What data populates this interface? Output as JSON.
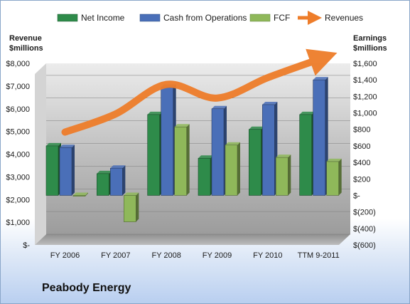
{
  "company_name": "Peabody Energy",
  "chart_data": {
    "type": "bar",
    "categories": [
      "FY 2006",
      "FY 2007",
      "FY 2008",
      "FY 2009",
      "FY 2010",
      "TTM 9-2011"
    ],
    "series": [
      {
        "name": "Net Income",
        "axis": "right",
        "kind": "bar",
        "color": "#2e8b4a",
        "values": [
          600,
          264,
          980,
          450,
          800,
          980
        ]
      },
      {
        "name": "Cash from Operations",
        "axis": "right",
        "kind": "bar",
        "color": "#4a6fb8",
        "values": [
          580,
          330,
          1310,
          1050,
          1100,
          1400
        ]
      },
      {
        "name": "FCF",
        "axis": "right",
        "kind": "bar",
        "color": "#8fb85a",
        "values": [
          -10,
          -320,
          830,
          610,
          460,
          410
        ]
      },
      {
        "name": "Revenues",
        "axis": "left",
        "kind": "line",
        "color": "#ee7d2a",
        "values": [
          4500,
          5300,
          6600,
          6000,
          6900,
          7700
        ]
      }
    ],
    "left_axis": {
      "title_line1": "Revenue",
      "title_line2": "$millions",
      "ylim": [
        0,
        8000
      ],
      "ticks": [
        "$8,000",
        "$7,000",
        "$6,000",
        "$5,000",
        "$4,000",
        "$3,000",
        "$2,000",
        "$1,000",
        "$-"
      ],
      "tick_values": [
        8000,
        7000,
        6000,
        5000,
        4000,
        3000,
        2000,
        1000,
        0
      ]
    },
    "right_axis": {
      "title_line1": "Earnings",
      "title_line2": "$millions",
      "ylim": [
        -600,
        1600
      ],
      "ticks": [
        "$1,600",
        "$1,400",
        "$1,200",
        "$1,000",
        "$800",
        "$600",
        "$400",
        "$200",
        "$-",
        "$(200)",
        "$(400)",
        "$(600)"
      ],
      "tick_values": [
        1600,
        1400,
        1200,
        1000,
        800,
        600,
        400,
        200,
        0,
        -200,
        -400,
        -600
      ]
    },
    "grid": true,
    "legend_position": "top"
  }
}
